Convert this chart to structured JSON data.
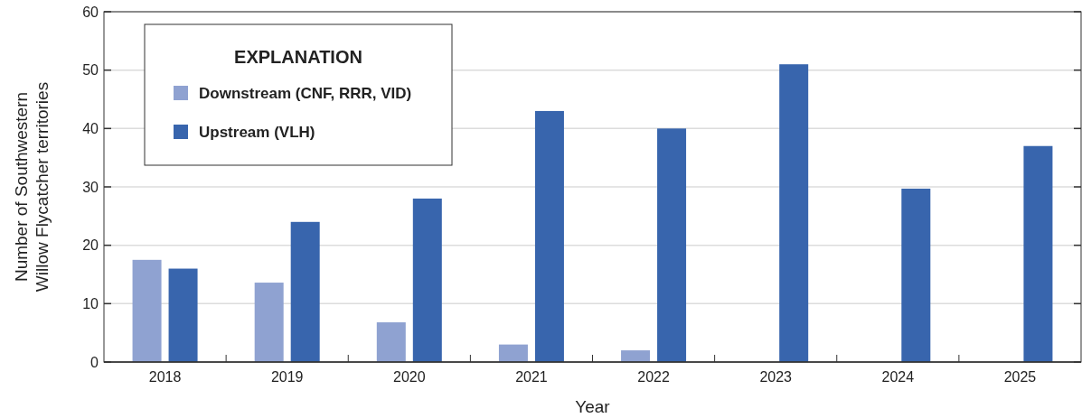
{
  "chart_data": {
    "type": "bar",
    "xlabel": "Year",
    "ylabel": "Number of Southwestern Willow Flycatcher territories",
    "legend_title": "EXPLANATION",
    "categories": [
      "2018",
      "2019",
      "2020",
      "2021",
      "2022",
      "2023",
      "2024",
      "2025"
    ],
    "series": [
      {
        "name": "Downstream (CNF, RRR, VID)",
        "color": "#8fa2d1",
        "values": [
          17.5,
          13.6,
          6.8,
          3,
          2,
          0,
          0,
          0
        ]
      },
      {
        "name": "Upstream (VLH)",
        "color": "#3865ad",
        "values": [
          16,
          24,
          28,
          43,
          40,
          51,
          29.7,
          37
        ]
      }
    ],
    "ylim": [
      0,
      60
    ],
    "yticks": [
      0,
      10,
      20,
      30,
      40,
      50,
      60
    ],
    "grid": "y",
    "legend": "top left"
  }
}
